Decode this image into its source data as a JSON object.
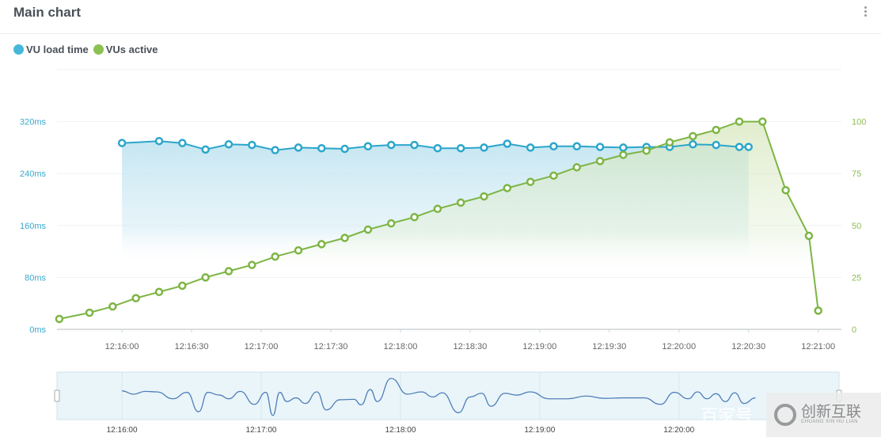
{
  "panel": {
    "title": "Main chart",
    "menu_icon": "kebab-menu-icon"
  },
  "watermark": {
    "text1": "百家号",
    "logo_text": "创新互联",
    "logo_sub": "CHUANG XIN HU LIAN"
  },
  "chart_data": {
    "type": "line",
    "legend": [
      {
        "name": "VU load time",
        "color": "#2ba6cb"
      },
      {
        "name": "VUs active",
        "color": "#7db544"
      }
    ],
    "legend_placement": "top-left",
    "grid": true,
    "xlim": [
      "12:15:32",
      "12:21:10"
    ],
    "x_ticks": [
      "12:16:00",
      "12:16:30",
      "12:17:00",
      "12:17:30",
      "12:18:00",
      "12:18:30",
      "12:19:00",
      "12:19:30",
      "12:20:00",
      "12:20:30",
      "12:21:00"
    ],
    "y_left": {
      "ticks": [
        "0ms",
        "80ms",
        "160ms",
        "240ms",
        "320ms"
      ],
      "values": [
        0,
        80,
        160,
        240,
        320
      ],
      "lim": [
        0,
        400
      ]
    },
    "y_right": {
      "ticks": [
        "0",
        "25",
        "50",
        "75",
        "100"
      ],
      "values": [
        0,
        25,
        50,
        75,
        100
      ],
      "lim": [
        0,
        125
      ]
    },
    "series": [
      {
        "name": "VU load time",
        "axis": "left",
        "color": "#2ba6cb",
        "x": [
          "12:16:00",
          "12:16:16",
          "12:16:26",
          "12:16:36",
          "12:16:46",
          "12:16:56",
          "12:17:06",
          "12:17:16",
          "12:17:26",
          "12:17:36",
          "12:17:46",
          "12:17:56",
          "12:18:06",
          "12:18:16",
          "12:18:26",
          "12:18:36",
          "12:18:46",
          "12:18:56",
          "12:19:06",
          "12:19:16",
          "12:19:26",
          "12:19:36",
          "12:19:46",
          "12:19:56",
          "12:20:06",
          "12:20:16",
          "12:20:26",
          "12:20:30"
        ],
        "values": [
          287,
          290,
          287,
          277,
          285,
          284,
          276,
          280,
          279,
          278,
          282,
          284,
          284,
          279,
          279,
          280,
          286,
          280,
          282,
          282,
          281,
          280,
          281,
          281,
          285,
          284,
          281,
          281
        ]
      },
      {
        "name": "VUs active",
        "axis": "right",
        "color": "#7db544",
        "x": [
          "12:15:33",
          "12:15:46",
          "12:15:56",
          "12:16:06",
          "12:16:16",
          "12:16:26",
          "12:16:36",
          "12:16:46",
          "12:16:56",
          "12:17:06",
          "12:17:16",
          "12:17:26",
          "12:17:36",
          "12:17:46",
          "12:17:56",
          "12:18:06",
          "12:18:16",
          "12:18:26",
          "12:18:36",
          "12:18:46",
          "12:18:56",
          "12:19:06",
          "12:19:16",
          "12:19:26",
          "12:19:36",
          "12:19:46",
          "12:19:56",
          "12:20:06",
          "12:20:16",
          "12:20:26",
          "12:20:36",
          "12:20:46",
          "12:20:56",
          "12:21:00"
        ],
        "values": [
          5,
          8,
          11,
          15,
          18,
          21,
          25,
          28,
          31,
          35,
          38,
          41,
          44,
          48,
          51,
          54,
          58,
          61,
          64,
          68,
          71,
          74,
          78,
          81,
          84,
          86,
          90,
          93,
          96,
          100,
          100,
          67,
          45,
          9
        ]
      }
    ],
    "navigator": {
      "x_ticks": [
        "12:16:00",
        "12:17:00",
        "12:18:00",
        "12:19:00",
        "12:20:00"
      ],
      "x": [
        "12:16:00",
        "12:16:05",
        "12:16:10",
        "12:16:15",
        "12:16:22",
        "12:16:28",
        "12:16:33",
        "12:16:37",
        "12:16:42",
        "12:16:46",
        "12:16:51",
        "12:16:57",
        "12:17:02",
        "12:17:05",
        "12:17:08",
        "12:17:11",
        "12:17:15",
        "12:17:19",
        "12:17:24",
        "12:17:28",
        "12:17:34",
        "12:17:40",
        "12:17:43",
        "12:17:47",
        "12:17:50",
        "12:17:56",
        "12:18:03",
        "12:18:09",
        "12:18:14",
        "12:18:18",
        "12:18:25",
        "12:18:30",
        "12:18:35",
        "12:18:39",
        "12:18:45",
        "12:18:50",
        "12:18:56",
        "12:19:04",
        "12:19:12",
        "12:19:20",
        "12:19:28",
        "12:19:36",
        "12:19:45",
        "12:19:52",
        "12:19:58",
        "12:20:04",
        "12:20:08",
        "12:20:12",
        "12:20:16",
        "12:20:20",
        "12:20:24",
        "12:20:28",
        "12:20:33"
      ],
      "values": [
        285,
        278,
        284,
        283,
        268,
        282,
        240,
        282,
        276,
        268,
        284,
        256,
        282,
        232,
        282,
        262,
        270,
        258,
        283,
        244,
        266,
        267,
        255,
        288,
        262,
        312,
        278,
        283,
        272,
        281,
        238,
        272,
        280,
        252,
        280,
        276,
        283,
        268,
        268,
        274,
        269,
        270,
        270,
        256,
        282,
        268,
        283,
        268,
        279,
        262,
        281,
        258,
        270
      ]
    }
  }
}
